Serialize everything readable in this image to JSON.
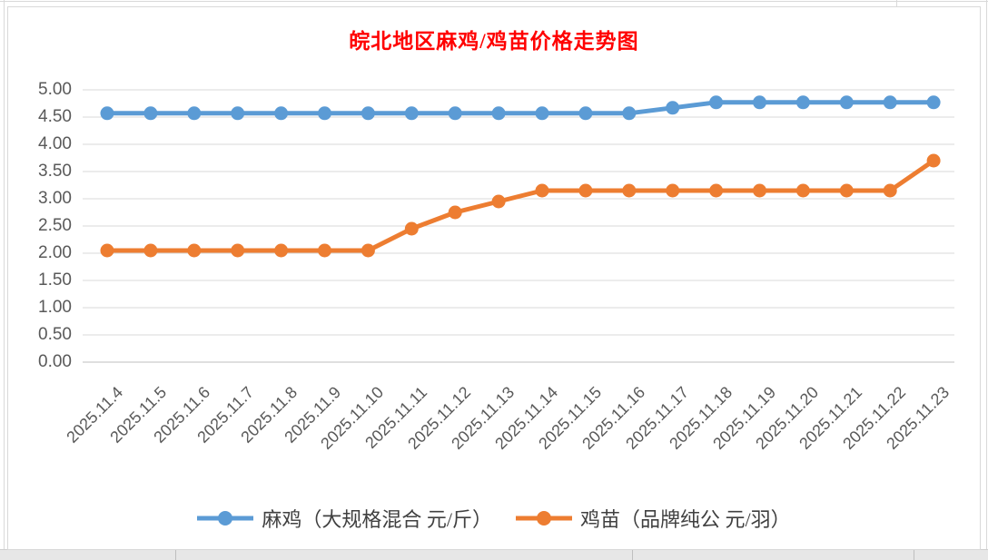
{
  "chart_data": {
    "type": "line",
    "title": "皖北地区麻鸡/鸡苗价格走势图",
    "title_color": "#FF0000",
    "categories": [
      "2025.11.4",
      "2025.11.5",
      "2025.11.6",
      "2025.11.7",
      "2025.11.8",
      "2025.11.9",
      "2025.11.10",
      "2025.11.11",
      "2025.11.12",
      "2025.11.13",
      "2025.11.14",
      "2025.11.15",
      "2025.11.16",
      "2025.11.17",
      "2025.11.18",
      "2025.11.19",
      "2025.11.20",
      "2025.11.21",
      "2025.11.22",
      "2025.11.23"
    ],
    "series": [
      {
        "name": "麻鸡（大规格混合 元/斤）",
        "color": "#5B9BD5",
        "values": [
          4.57,
          4.57,
          4.57,
          4.57,
          4.57,
          4.57,
          4.57,
          4.57,
          4.57,
          4.57,
          4.57,
          4.57,
          4.57,
          4.67,
          4.77,
          4.77,
          4.77,
          4.77,
          4.77,
          4.77
        ]
      },
      {
        "name": "鸡苗（品牌纯公 元/羽）",
        "color": "#ED7D31",
        "values": [
          2.05,
          2.05,
          2.05,
          2.05,
          2.05,
          2.05,
          2.05,
          2.45,
          2.75,
          2.95,
          3.15,
          3.15,
          3.15,
          3.15,
          3.15,
          3.15,
          3.15,
          3.15,
          3.15,
          3.7
        ]
      }
    ],
    "ylim": [
      0,
      5
    ],
    "ytick_step": 0.5,
    "ytick_labels": [
      "0.00",
      "0.50",
      "1.00",
      "1.50",
      "2.00",
      "2.50",
      "3.00",
      "3.50",
      "4.00",
      "4.50",
      "5.00"
    ],
    "grid": true,
    "gridline_color": "#D9D9D9",
    "axis_line_color": "#BFBFBF",
    "axis_label_color": "#595959",
    "legend_position": "bottom",
    "marker": "circle"
  }
}
